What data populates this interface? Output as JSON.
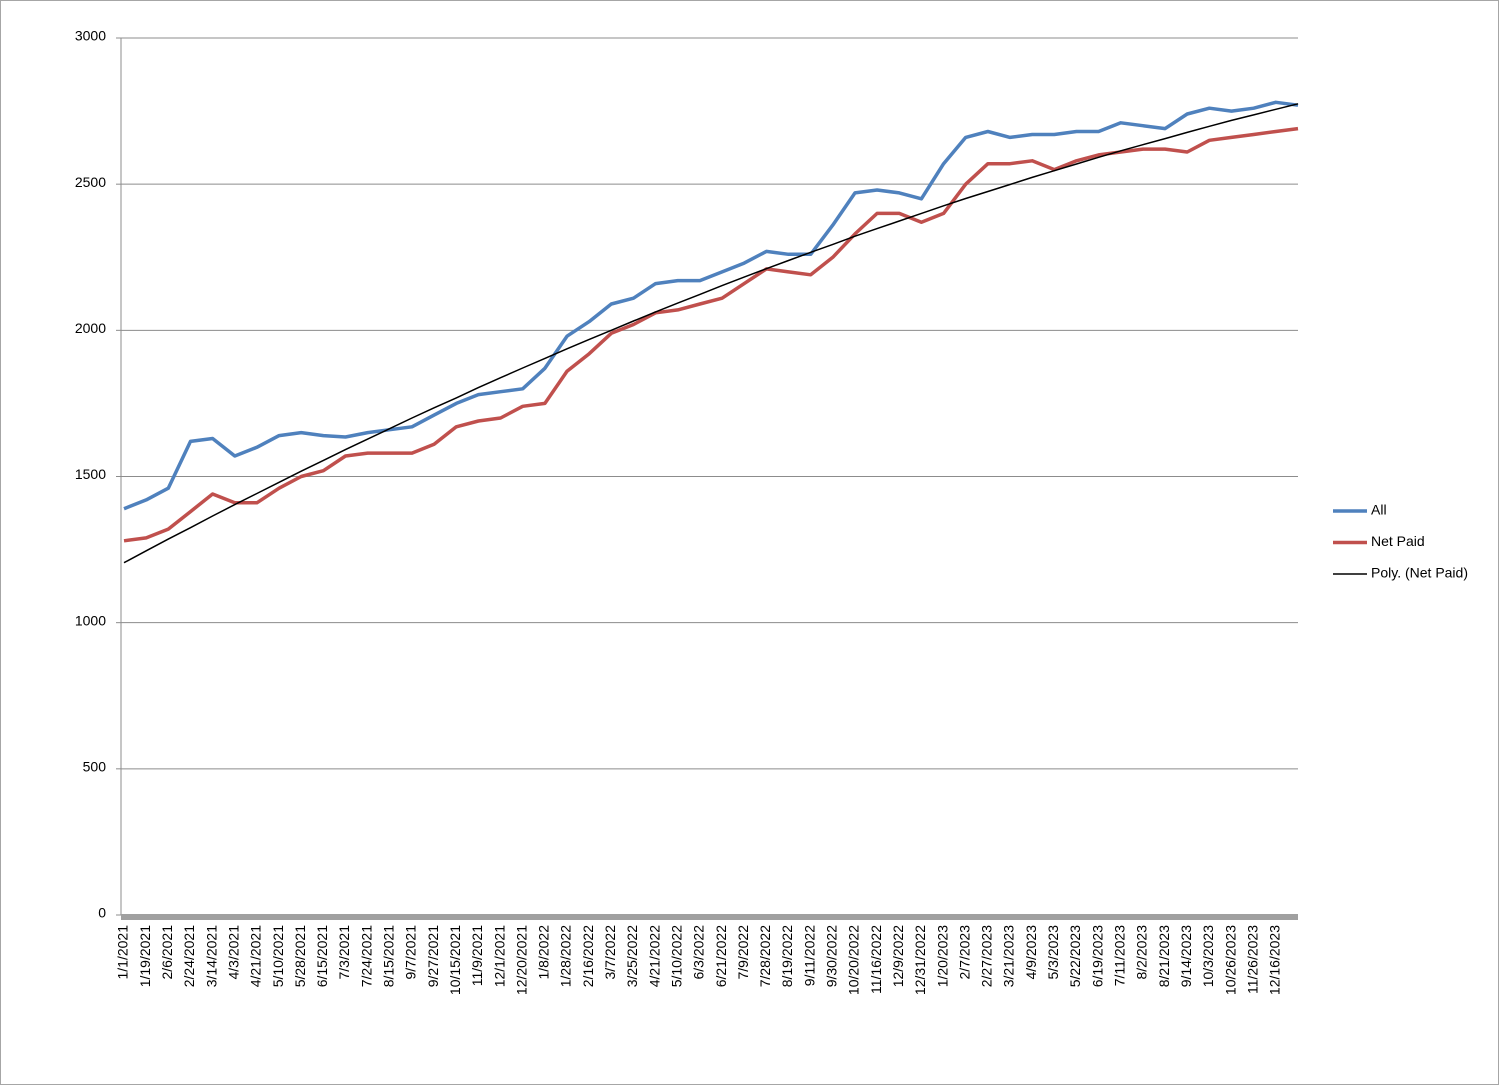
{
  "chart_data": {
    "type": "line",
    "categories": [
      "1/1/2021",
      "1/19/2021",
      "2/6/2021",
      "2/24/2021",
      "3/14/2021",
      "4/3/2021",
      "4/21/2021",
      "5/10/2021",
      "5/28/2021",
      "6/15/2021",
      "7/3/2021",
      "7/24/2021",
      "8/15/2021",
      "9/7/2021",
      "9/27/2021",
      "10/15/2021",
      "11/9/2021",
      "12/1/2021",
      "12/20/2021",
      "1/8/2022",
      "1/28/2022",
      "2/16/2022",
      "3/7/2022",
      "3/25/2022",
      "4/21/2022",
      "5/10/2022",
      "6/3/2022",
      "6/21/2022",
      "7/9/2022",
      "7/28/2022",
      "8/19/2022",
      "9/11/2022",
      "9/30/2022",
      "10/20/2022",
      "11/16/2022",
      "12/9/2022",
      "12/31/2022",
      "1/20/2023",
      "2/7/2023",
      "2/27/2023",
      "3/21/2023",
      "4/9/2023",
      "5/3/2023",
      "5/22/2023",
      "6/19/2023",
      "7/11/2023",
      "8/2/2023",
      "8/21/2023",
      "9/14/2023",
      "10/3/2023",
      "10/26/2023",
      "11/26/2023",
      "12/16/2023",
      null
    ],
    "series": [
      {
        "name": "All",
        "color": "#4f81bd",
        "values": [
          1390,
          1420,
          1460,
          1620,
          1630,
          1570,
          1600,
          1640,
          1650,
          1640,
          1635,
          1650,
          1660,
          1670,
          1710,
          1750,
          1780,
          1790,
          1800,
          1870,
          1980,
          2030,
          2090,
          2110,
          2160,
          2170,
          2170,
          2200,
          2230,
          2270,
          2260,
          2260,
          2360,
          2470,
          2480,
          2470,
          2450,
          2570,
          2660,
          2680,
          2660,
          2670,
          2670,
          2680,
          2680,
          2710,
          2700,
          2690,
          2740,
          2760,
          2750,
          2760,
          2780,
          2770
        ]
      },
      {
        "name": "Net Paid",
        "color": "#c0504d",
        "values": [
          1280,
          1290,
          1320,
          1380,
          1440,
          1410,
          1410,
          1460,
          1500,
          1520,
          1570,
          1580,
          1580,
          1580,
          1610,
          1670,
          1690,
          1700,
          1740,
          1750,
          1860,
          1920,
          1990,
          2020,
          2060,
          2070,
          2090,
          2110,
          2160,
          2210,
          2200,
          2190,
          2250,
          2330,
          2400,
          2400,
          2370,
          2400,
          2500,
          2570,
          2570,
          2580,
          2550,
          2580,
          2600,
          2610,
          2620,
          2620,
          2610,
          2650,
          2660,
          2670,
          2680,
          2690
        ]
      },
      {
        "name": "Poly. (Net Paid)",
        "color": "#000000",
        "values": [
          1205,
          1246,
          1286,
          1325,
          1365,
          1404,
          1442,
          1480,
          1518,
          1555,
          1592,
          1628,
          1664,
          1700,
          1735,
          1769,
          1804,
          1838,
          1871,
          1904,
          1937,
          1969,
          2000,
          2032,
          2063,
          2093,
          2123,
          2153,
          2182,
          2211,
          2239,
          2267,
          2294,
          2322,
          2348,
          2374,
          2400,
          2426,
          2451,
          2475,
          2499,
          2523,
          2546,
          2569,
          2592,
          2614,
          2635,
          2656,
          2677,
          2698,
          2718,
          2737,
          2756,
          2775
        ]
      }
    ],
    "ylim": [
      0,
      3000
    ],
    "yticks": [
      0,
      500,
      1000,
      1500,
      2000,
      2500,
      3000
    ],
    "grid": true,
    "legend": "right"
  }
}
